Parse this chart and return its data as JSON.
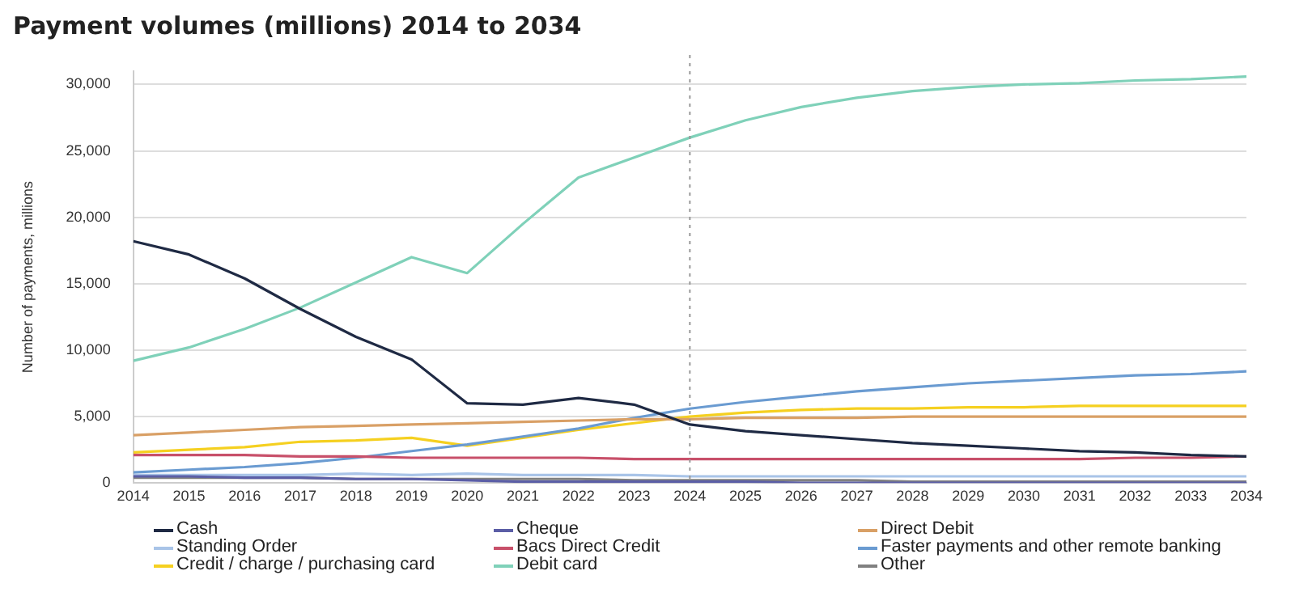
{
  "chart_data": {
    "type": "line",
    "title": "Payment volumes (millions) 2014 to 2034",
    "ylabel": "Number of payments, millions",
    "x": [
      2014,
      2015,
      2016,
      2017,
      2018,
      2019,
      2020,
      2021,
      2022,
      2023,
      2024,
      2025,
      2026,
      2027,
      2028,
      2029,
      2030,
      2031,
      2032,
      2033,
      2034
    ],
    "xlim": [
      2014,
      2034
    ],
    "xticks": [
      2014,
      2015,
      2016,
      2017,
      2018,
      2019,
      2020,
      2021,
      2022,
      2023,
      2024,
      2025,
      2026,
      2027,
      2028,
      2029,
      2030,
      2031,
      2032,
      2033,
      2034
    ],
    "ylim": [
      0,
      31000
    ],
    "yticks": [
      {
        "value": 0,
        "label": "0"
      },
      {
        "value": 5000,
        "label": "5,000"
      },
      {
        "value": 10000,
        "label": "10,000"
      },
      {
        "value": 15000,
        "label": "15,000"
      },
      {
        "value": 20000,
        "label": "20,000"
      },
      {
        "value": 25000,
        "label": "25,000"
      },
      {
        "value": 30000,
        "label": "30,000"
      }
    ],
    "grid": "y",
    "legend": "bottom",
    "marker": "none",
    "line_style": "solid",
    "ref_lines": [
      {
        "axis": "x",
        "value": 2024,
        "color": "#999999",
        "line_style": "dotted"
      }
    ],
    "series": [
      {
        "name": "Cash",
        "color": "#1f2a44",
        "values": [
          18200,
          17200,
          15400,
          13100,
          11000,
          9300,
          6000,
          5900,
          6400,
          5900,
          4400,
          3900,
          3600,
          3300,
          3000,
          2800,
          2600,
          2400,
          2300,
          2100,
          2000
        ]
      },
      {
        "name": "Cheque",
        "color": "#5b5ea6",
        "values": [
          500,
          500,
          400,
          400,
          300,
          300,
          200,
          100,
          100,
          100,
          100,
          100,
          0,
          0,
          0,
          0,
          0,
          0,
          0,
          0,
          0
        ]
      },
      {
        "name": "Direct Debit",
        "color": "#d9a066",
        "values": [
          3600,
          3800,
          4000,
          4200,
          4300,
          4400,
          4500,
          4600,
          4700,
          4800,
          4800,
          4900,
          4900,
          4900,
          5000,
          5000,
          5000,
          5000,
          5000,
          5000,
          5000
        ]
      },
      {
        "name": "Standing Order",
        "color": "#a9c4e8",
        "values": [
          600,
          600,
          600,
          600,
          700,
          600,
          700,
          600,
          600,
          600,
          500,
          500,
          500,
          500,
          500,
          500,
          500,
          500,
          500,
          500,
          500
        ]
      },
      {
        "name": "Bacs Direct Credit",
        "color": "#c8506a",
        "values": [
          2100,
          2100,
          2100,
          2000,
          2000,
          1900,
          1900,
          1900,
          1900,
          1800,
          1800,
          1800,
          1800,
          1800,
          1800,
          1800,
          1800,
          1800,
          1900,
          1900,
          2000
        ]
      },
      {
        "name": "Faster payments and other remote banking",
        "color": "#6a9bd1",
        "values": [
          800,
          1000,
          1200,
          1500,
          1900,
          2400,
          2900,
          3500,
          4100,
          4900,
          5600,
          6100,
          6500,
          6900,
          7200,
          7500,
          7700,
          7900,
          8100,
          8200,
          8400
        ]
      },
      {
        "name": "Credit / charge / purchasing card",
        "color": "#f5d020",
        "values": [
          2300,
          2500,
          2700,
          3100,
          3200,
          3400,
          2800,
          3400,
          4000,
          4500,
          5000,
          5300,
          5500,
          5600,
          5600,
          5700,
          5700,
          5800,
          5800,
          5800,
          5800
        ]
      },
      {
        "name": "Debit card",
        "color": "#7fd1b9",
        "values": [
          9200,
          10200,
          11600,
          13200,
          15100,
          17000,
          15800,
          19500,
          23000,
          24500,
          26000,
          27300,
          28300,
          29000,
          29500,
          29800,
          30000,
          30100,
          30300,
          30400,
          30600
        ]
      },
      {
        "name": "Other",
        "color": "#808080",
        "values": [
          400,
          400,
          400,
          400,
          300,
          300,
          300,
          300,
          300,
          200,
          200,
          200,
          200,
          200,
          100,
          100,
          100,
          100,
          100,
          100,
          100
        ]
      }
    ]
  }
}
